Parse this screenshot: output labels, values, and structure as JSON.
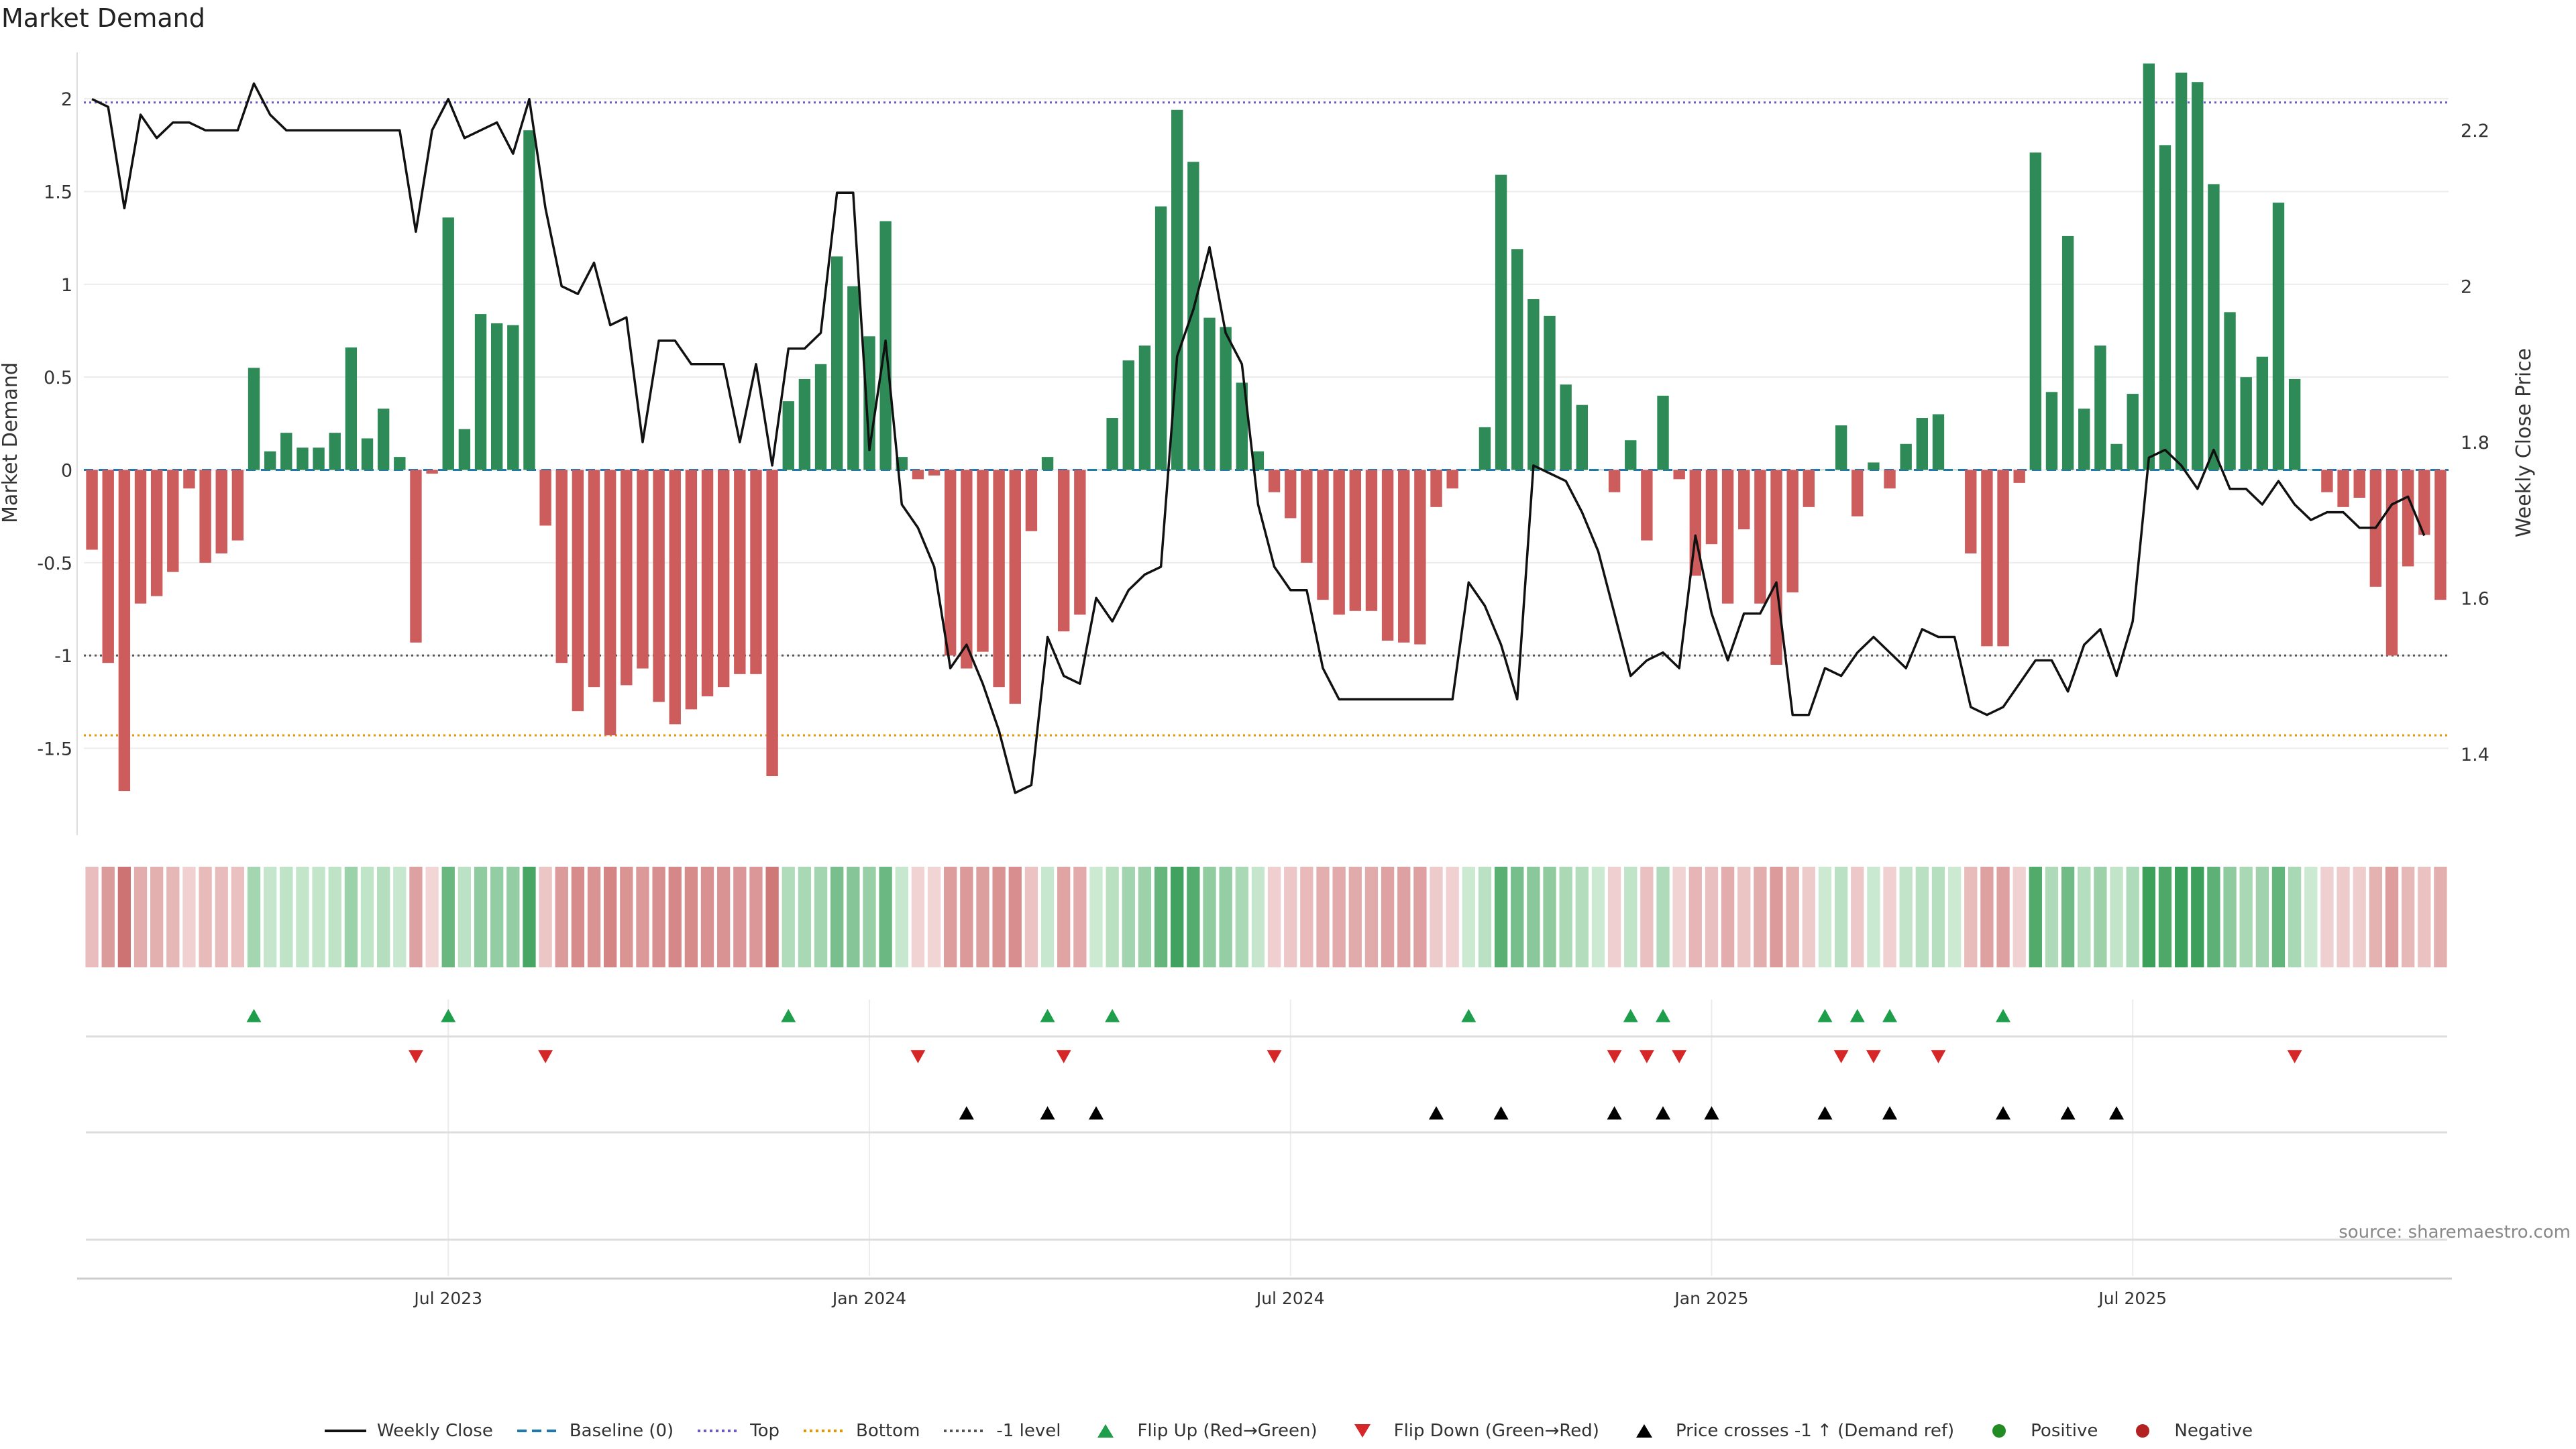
{
  "title": "Market Demand",
  "source": "source: sharemaestro.com",
  "chart_data": {
    "type": "bar",
    "title": "Market Demand",
    "ylabel": "Market Demand",
    "y2label": "Weekly Close Price",
    "ylim": [
      -1.95,
      2.25
    ],
    "y2lim": [
      1.3,
      2.3
    ],
    "yticks": [
      -1.5,
      -1,
      -0.5,
      0,
      0.5,
      1,
      1.5,
      2
    ],
    "y2ticks": [
      1.4,
      1.6,
      1.8,
      2,
      2.2
    ],
    "xticks": [
      {
        "label": "Jul 2023",
        "i": 22
      },
      {
        "label": "Jan 2024",
        "i": 48
      },
      {
        "label": "Jul 2024",
        "i": 74
      },
      {
        "label": "Jan 2025",
        "i": 100
      },
      {
        "label": "Jul 2025",
        "i": 126
      }
    ],
    "reference_lines": {
      "baseline": 0,
      "top": 1.98,
      "bottom": -1.43,
      "minus_one": -1
    },
    "demand": [
      -0.43,
      -1.04,
      -1.73,
      -0.72,
      -0.68,
      -0.55,
      -0.1,
      -0.5,
      -0.45,
      -0.38,
      0.55,
      0.1,
      0.2,
      0.12,
      0.12,
      0.2,
      0.66,
      0.17,
      0.33,
      0.07,
      -0.93,
      -0.02,
      1.36,
      0.22,
      0.84,
      0.79,
      0.78,
      1.83,
      -0.3,
      -1.04,
      -1.3,
      -1.17,
      -1.43,
      -1.16,
      -1.07,
      -1.25,
      -1.37,
      -1.29,
      -1.22,
      -1.17,
      -1.1,
      -1.1,
      -1.65,
      0.37,
      0.49,
      0.57,
      1.15,
      0.99,
      0.72,
      1.34,
      0.07,
      -0.05,
      -0.03,
      -1.0,
      -1.07,
      -0.98,
      -1.17,
      -1.26,
      -0.33,
      0.07,
      -0.87,
      -0.78,
      0.0,
      0.28,
      0.59,
      0.67,
      1.42,
      1.94,
      1.66,
      0.82,
      0.77,
      0.47,
      0.1,
      -0.12,
      -0.26,
      -0.5,
      -0.7,
      -0.78,
      -0.76,
      -0.76,
      -0.92,
      -0.93,
      -0.94,
      -0.2,
      -0.1,
      0.0,
      0.23,
      1.59,
      1.19,
      0.92,
      0.83,
      0.46,
      0.35,
      0.0,
      -0.12,
      0.16,
      -0.38,
      0.4,
      -0.05,
      -0.57,
      -0.4,
      -0.72,
      -0.32,
      -0.72,
      -1.05,
      -0.66,
      -0.2,
      0.0,
      0.24,
      -0.25,
      0.04,
      -0.1,
      0.14,
      0.28,
      0.3,
      0.0,
      -0.45,
      -0.95,
      -0.95,
      -0.07,
      1.71,
      0.42,
      1.26,
      0.33,
      0.67,
      0.14,
      0.41,
      2.19,
      1.75,
      2.14,
      2.09,
      1.54,
      0.85,
      0.5,
      0.61,
      1.44,
      0.49,
      0.0,
      -0.12,
      -0.2,
      -0.15,
      -0.63,
      -1.0,
      -0.52,
      -0.35,
      -0.7
    ],
    "weekly_close": [
      2.24,
      2.23,
      2.1,
      2.22,
      2.19,
      2.21,
      2.21,
      2.2,
      2.2,
      2.2,
      2.26,
      2.22,
      2.2,
      2.2,
      2.2,
      2.2,
      2.2,
      2.2,
      2.2,
      2.2,
      2.07,
      2.2,
      2.24,
      2.19,
      2.2,
      2.21,
      2.17,
      2.24,
      2.1,
      2.0,
      1.99,
      2.03,
      1.95,
      1.96,
      1.8,
      1.93,
      1.93,
      1.9,
      1.9,
      1.9,
      1.8,
      1.9,
      1.77,
      1.92,
      1.92,
      1.94,
      2.12,
      2.12,
      1.79,
      1.93,
      1.72,
      1.69,
      1.64,
      1.51,
      1.54,
      1.49,
      1.43,
      1.35,
      1.36,
      1.55,
      1.5,
      1.49,
      1.6,
      1.57,
      1.61,
      1.63,
      1.64,
      1.91,
      1.97,
      2.05,
      1.94,
      1.9,
      1.72,
      1.64,
      1.61,
      1.61,
      1.51,
      1.47,
      1.47,
      1.47,
      1.47,
      1.47,
      1.47,
      1.47,
      1.47,
      1.62,
      1.59,
      1.54,
      1.47,
      1.77,
      1.76,
      1.75,
      1.71,
      1.66,
      1.58,
      1.5,
      1.52,
      1.53,
      1.51,
      1.68,
      1.58,
      1.52,
      1.58,
      1.58,
      1.62,
      1.45,
      1.45,
      1.51,
      1.5,
      1.53,
      1.55,
      1.53,
      1.51,
      1.56,
      1.55,
      1.55,
      1.46,
      1.45,
      1.46,
      1.49,
      1.52,
      1.52,
      1.48,
      1.54,
      1.56,
      1.5,
      1.57,
      1.78,
      1.79,
      1.77,
      1.74,
      1.79,
      1.74,
      1.74,
      1.72,
      1.75,
      1.72,
      1.7,
      1.71,
      1.71,
      1.69,
      1.69,
      1.72,
      1.73,
      1.68
    ],
    "flip_up_idx": [
      10,
      22,
      43,
      59,
      63,
      85,
      95,
      97,
      107,
      109,
      111,
      118
    ],
    "flip_down_idx": [
      20,
      28,
      51,
      60,
      73,
      94,
      96,
      98,
      108,
      110,
      114,
      136
    ],
    "price_cross_idx": [
      54,
      59,
      62,
      83,
      87,
      94,
      97,
      100,
      107,
      111,
      118,
      122,
      125
    ],
    "colors": {
      "positive": "#2e8b57",
      "negative": "#cd5c5c",
      "price": "#111111",
      "baseline": "#1f77b4",
      "top": "#6a5acd",
      "bottom": "#e69500",
      "minus_one": "#555555",
      "flip_up": "#1e9e4a",
      "flip_down": "#d62728",
      "cross": "#000000"
    }
  },
  "legend": [
    {
      "label": "Weekly Close",
      "icon": "line-solid",
      "color": "#111111"
    },
    {
      "label": "Baseline (0)",
      "icon": "line-dashed",
      "color": "#1f77b4"
    },
    {
      "label": "Top",
      "icon": "line-dotted",
      "color": "#6a5acd"
    },
    {
      "label": "Bottom",
      "icon": "line-dotted",
      "color": "#e69500"
    },
    {
      "label": "-1 level",
      "icon": "line-dotted",
      "color": "#555555"
    },
    {
      "label": "Flip Up (Red→Green)",
      "icon": "triangle-up",
      "color": "#1e9e4a"
    },
    {
      "label": "Flip Down (Green→Red)",
      "icon": "triangle-down",
      "color": "#d62728"
    },
    {
      "label": "Price crosses -1 ↑ (Demand ref)",
      "icon": "triangle-up",
      "color": "#000000"
    },
    {
      "label": "Positive",
      "icon": "dot",
      "color": "#228b22"
    },
    {
      "label": "Negative",
      "icon": "dot",
      "color": "#b22222"
    }
  ]
}
